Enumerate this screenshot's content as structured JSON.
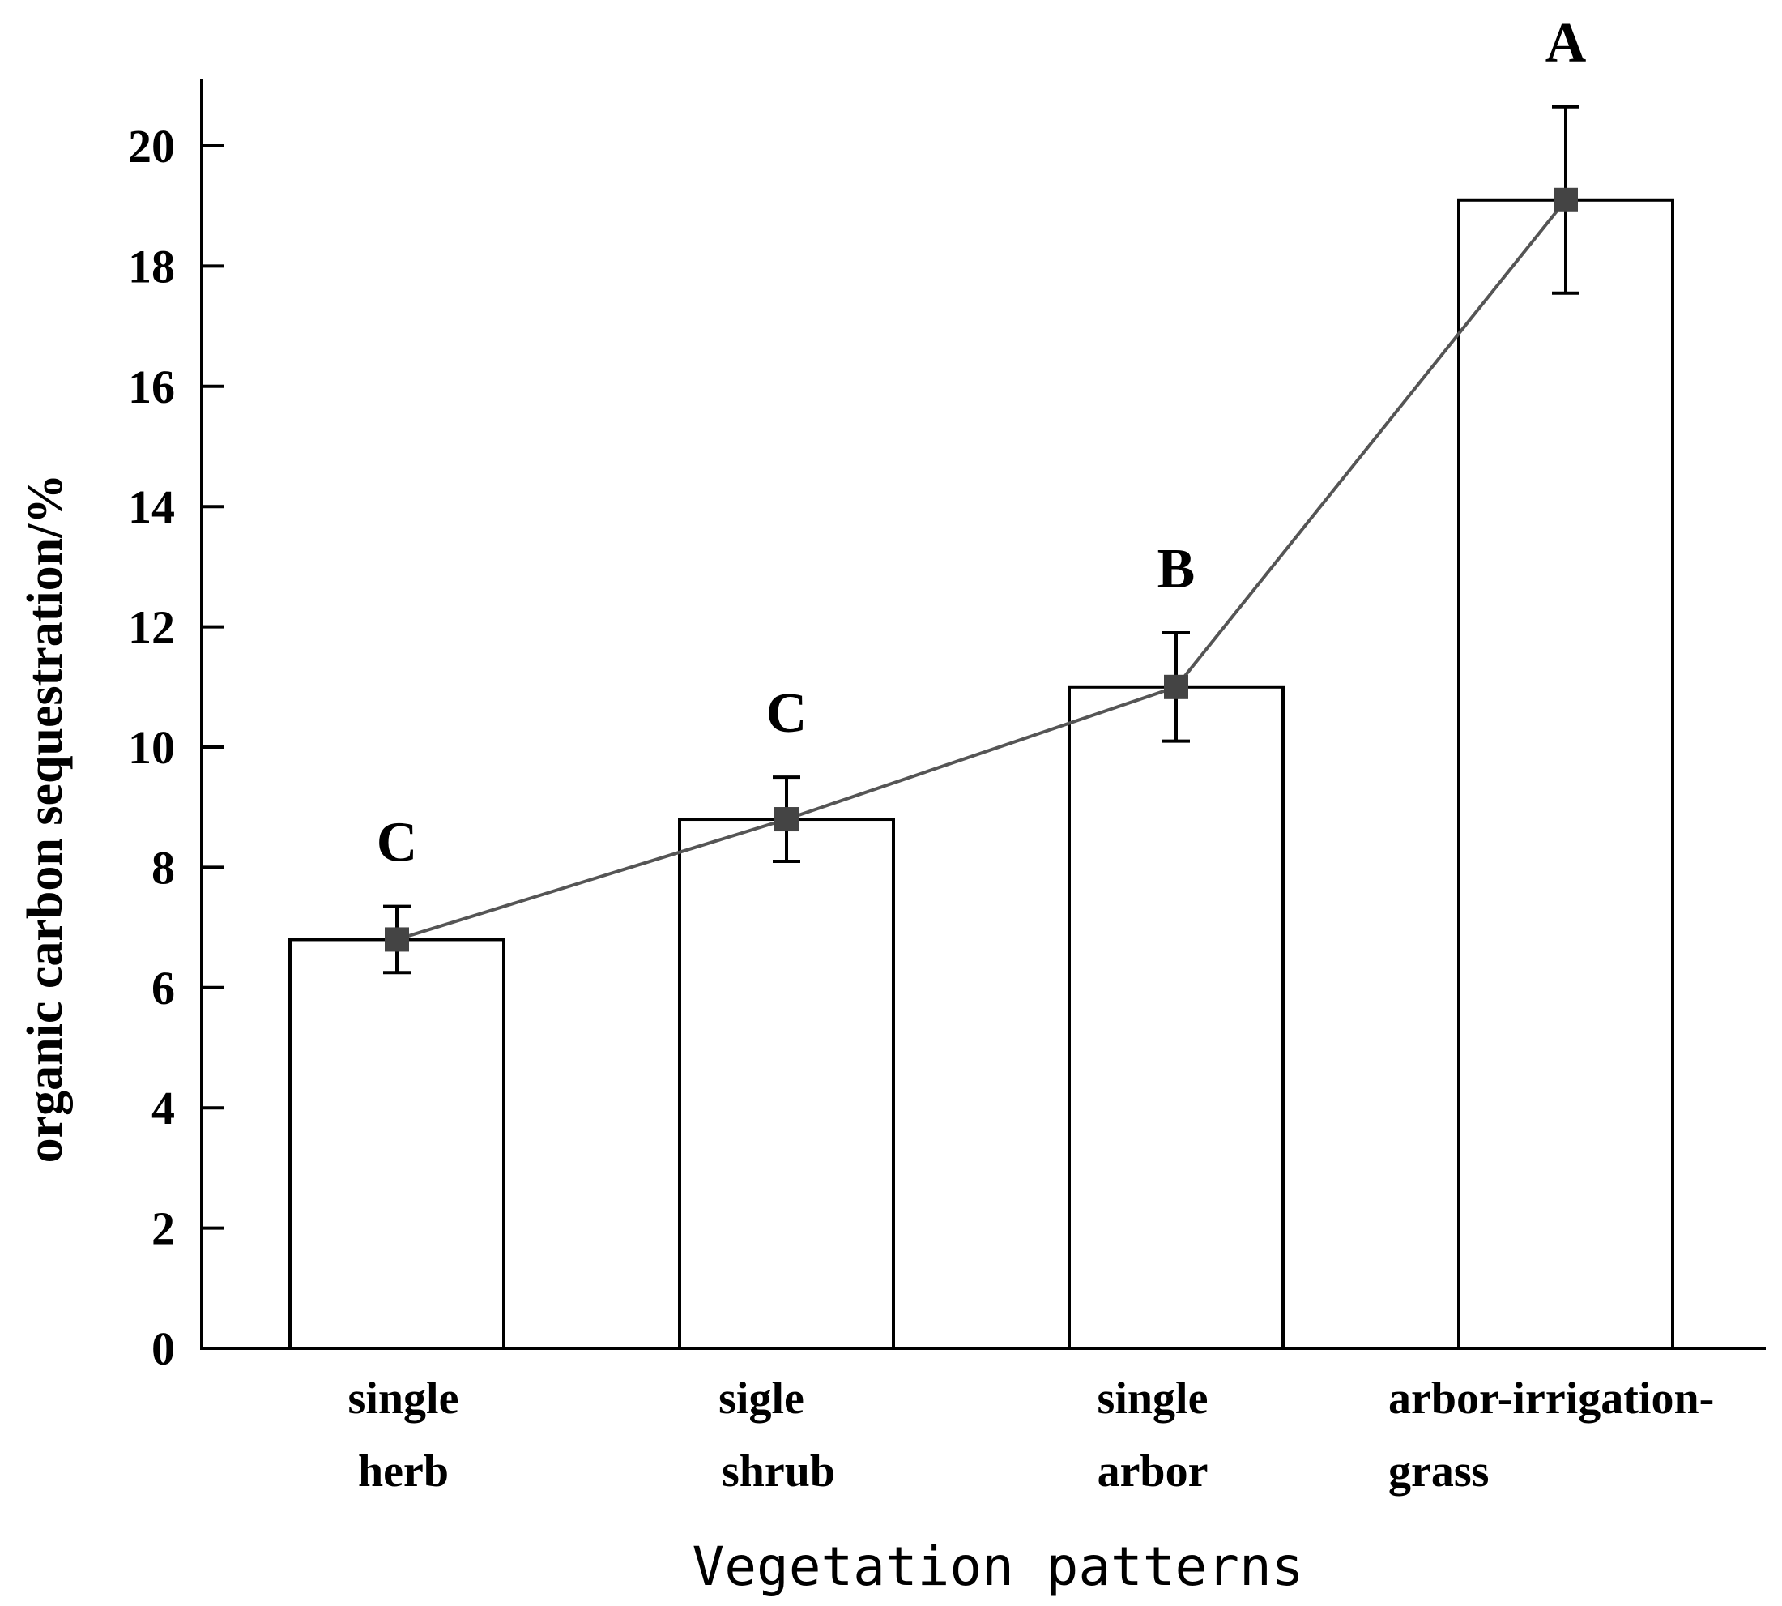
{
  "chart_data": {
    "type": "bar",
    "categories": [
      [
        "single",
        "herb"
      ],
      [
        "sigle",
        "shrub"
      ],
      [
        "single",
        "arbor"
      ],
      [
        "arbor-irrigation-",
        "grass"
      ]
    ],
    "values": [
      6.8,
      8.8,
      11.0,
      19.1
    ],
    "error": [
      0.55,
      0.7,
      0.9,
      1.55
    ],
    "significance": [
      "C",
      "C",
      "B",
      "A"
    ],
    "line_overlay": true,
    "xlabel": "Vegetation patterns",
    "ylabel": "organic carbon sequestration/%",
    "yticks": [
      0,
      2,
      4,
      6,
      8,
      10,
      12,
      14,
      16,
      18,
      20
    ],
    "ylim": [
      0,
      21
    ]
  }
}
